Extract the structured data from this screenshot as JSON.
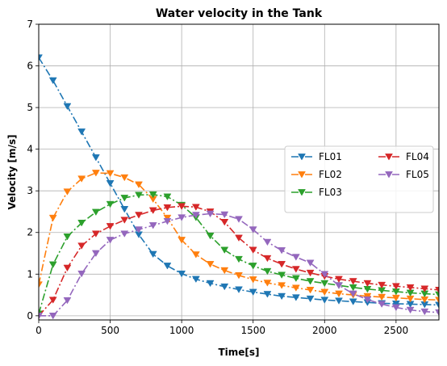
{
  "chart_data": {
    "type": "line",
    "title": "Water velocity in the Tank",
    "xlabel": "Time[s]",
    "ylabel": "Velocity [m/s]",
    "xlim": [
      0,
      2800
    ],
    "ylim": [
      -0.1,
      7
    ],
    "xticks": [
      0,
      500,
      1000,
      1500,
      2000,
      2500
    ],
    "yticks": [
      0,
      1,
      2,
      3,
      4,
      5,
      6,
      7
    ],
    "grid": true,
    "legend": {
      "placement": "center-right",
      "columns": 2
    },
    "series": [
      {
        "name": "FL01",
        "color": "#1f77b4",
        "linestyle": "dashdot",
        "marker": "triangle-down",
        "x": [
          0,
          100,
          200,
          300,
          400,
          500,
          600,
          700,
          800,
          900,
          1000,
          1100,
          1200,
          1300,
          1400,
          1500,
          1600,
          1700,
          1800,
          1900,
          2000,
          2100,
          2200,
          2300,
          2400,
          2500,
          2600,
          2700,
          2800
        ],
        "y": [
          6.2,
          5.65,
          5.03,
          4.42,
          3.8,
          3.18,
          2.56,
          1.95,
          1.48,
          1.2,
          1.01,
          0.88,
          0.78,
          0.7,
          0.63,
          0.57,
          0.52,
          0.47,
          0.44,
          0.41,
          0.38,
          0.36,
          0.34,
          0.32,
          0.3,
          0.29,
          0.28,
          0.27,
          0.26
        ]
      },
      {
        "name": "FL02",
        "color": "#ff7f0e",
        "linestyle": "dashdot",
        "marker": "triangle-down",
        "x": [
          0,
          100,
          200,
          300,
          400,
          500,
          600,
          700,
          800,
          900,
          1000,
          1100,
          1200,
          1300,
          1400,
          1500,
          1600,
          1700,
          1800,
          1900,
          2000,
          2100,
          2200,
          2300,
          2400,
          2500,
          2600,
          2700,
          2800
        ],
        "y": [
          0.75,
          2.35,
          2.98,
          3.29,
          3.43,
          3.42,
          3.32,
          3.15,
          2.8,
          2.35,
          1.82,
          1.47,
          1.24,
          1.09,
          0.97,
          0.87,
          0.79,
          0.73,
          0.67,
          0.62,
          0.57,
          0.53,
          0.5,
          0.47,
          0.45,
          0.43,
          0.41,
          0.39,
          0.38
        ]
      },
      {
        "name": "FL03",
        "color": "#2ca02c",
        "linestyle": "dashdot",
        "marker": "triangle-down",
        "x": [
          0,
          100,
          200,
          300,
          400,
          500,
          600,
          700,
          800,
          900,
          1000,
          1100,
          1200,
          1300,
          1400,
          1500,
          1600,
          1700,
          1800,
          1900,
          2000,
          2100,
          2200,
          2300,
          2400,
          2500,
          2600,
          2700,
          2800
        ],
        "y": [
          0.05,
          1.23,
          1.9,
          2.23,
          2.49,
          2.68,
          2.83,
          2.9,
          2.91,
          2.86,
          2.66,
          2.36,
          1.92,
          1.58,
          1.36,
          1.2,
          1.07,
          0.98,
          0.9,
          0.83,
          0.78,
          0.73,
          0.68,
          0.64,
          0.61,
          0.58,
          0.55,
          0.53,
          0.51
        ]
      },
      {
        "name": "FL04",
        "color": "#d62728",
        "linestyle": "dashdot",
        "marker": "triangle-down",
        "x": [
          0,
          100,
          200,
          300,
          400,
          500,
          600,
          700,
          800,
          900,
          1000,
          1100,
          1200,
          1300,
          1400,
          1500,
          1600,
          1700,
          1800,
          1900,
          2000,
          2100,
          2200,
          2300,
          2400,
          2500,
          2600,
          2700,
          2800
        ],
        "y": [
          0.0,
          0.38,
          1.15,
          1.68,
          1.97,
          2.15,
          2.3,
          2.42,
          2.53,
          2.6,
          2.63,
          2.61,
          2.5,
          2.25,
          1.87,
          1.58,
          1.38,
          1.24,
          1.12,
          1.03,
          0.95,
          0.88,
          0.83,
          0.78,
          0.74,
          0.71,
          0.68,
          0.65,
          0.62
        ]
      },
      {
        "name": "FL05",
        "color": "#9467bd",
        "linestyle": "dashdot",
        "marker": "triangle-down",
        "x": [
          0,
          100,
          200,
          300,
          400,
          500,
          600,
          700,
          800,
          900,
          1000,
          1100,
          1200,
          1300,
          1400,
          1500,
          1600,
          1700,
          1800,
          1900,
          2000,
          2100,
          2200,
          2300,
          2400,
          2500,
          2600,
          2700,
          2800
        ],
        "y": [
          0.0,
          0.0,
          0.37,
          1.01,
          1.5,
          1.82,
          1.97,
          2.07,
          2.17,
          2.27,
          2.36,
          2.42,
          2.45,
          2.43,
          2.32,
          2.07,
          1.77,
          1.57,
          1.41,
          1.27,
          1.0,
          0.73,
          0.53,
          0.39,
          0.28,
          0.2,
          0.14,
          0.1,
          0.08
        ]
      }
    ]
  }
}
